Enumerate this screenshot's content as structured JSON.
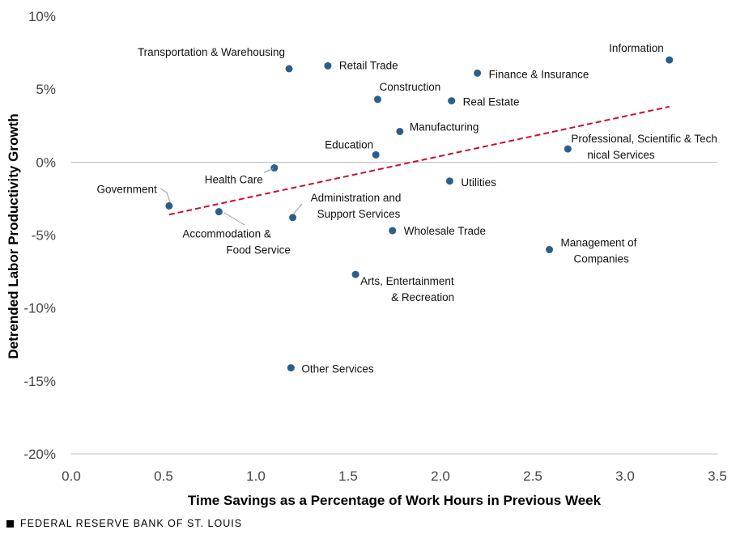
{
  "chart_data": {
    "type": "scatter",
    "xlabel": "Time Savings as a Percentage of Work Hours in Previous Week",
    "ylabel": "Detrended Labor Productivity Growth",
    "xlim": [
      0,
      3.5
    ],
    "ylim": [
      -20,
      10
    ],
    "x_ticks": [
      "0.0",
      "0.5",
      "1.0",
      "1.5",
      "2.0",
      "2.5",
      "3.0",
      "3.5"
    ],
    "y_ticks": [
      "10%",
      "5%",
      "0%",
      "-5%",
      "-10%",
      "-15%",
      "-20%"
    ],
    "grid": false,
    "point_color": "#2b5f8a",
    "trend_color": "#c8102e",
    "points": [
      {
        "name": "Transportation & Warehousing",
        "x": 1.18,
        "y": 6.4
      },
      {
        "name": "Retail Trade",
        "x": 1.39,
        "y": 6.6
      },
      {
        "name": "Information",
        "x": 3.24,
        "y": 7.0
      },
      {
        "name": "Finance & Insurance",
        "x": 2.2,
        "y": 6.1
      },
      {
        "name": "Construction",
        "x": 1.66,
        "y": 4.3
      },
      {
        "name": "Real Estate",
        "x": 2.06,
        "y": 4.2
      },
      {
        "name": "Manufacturing",
        "x": 1.78,
        "y": 2.1
      },
      {
        "name": "Education",
        "x": 1.65,
        "y": 0.5
      },
      {
        "name": "Professional, Scientific & Technical Services",
        "x": 2.69,
        "y": 0.9
      },
      {
        "name": "Health Care",
        "x": 1.1,
        "y": -0.4
      },
      {
        "name": "Utilities",
        "x": 2.05,
        "y": -1.3
      },
      {
        "name": "Government",
        "x": 0.53,
        "y": -3.0
      },
      {
        "name": "Accommodation & Food Service",
        "x": 0.8,
        "y": -3.4
      },
      {
        "name": "Administration and Support Services",
        "x": 1.2,
        "y": -3.8
      },
      {
        "name": "Wholesale Trade",
        "x": 1.74,
        "y": -4.7
      },
      {
        "name": "Management of Companies",
        "x": 2.59,
        "y": -6.0
      },
      {
        "name": "Arts, Entertainment & Recreation",
        "x": 1.54,
        "y": -7.7
      },
      {
        "name": "Other Services",
        "x": 1.19,
        "y": -14.1
      }
    ],
    "trendline": {
      "x": [
        0.53,
        3.24
      ],
      "y": [
        -3.6,
        3.8
      ]
    }
  },
  "footer": {
    "source": "FEDERAL RESERVE BANK OF ST. LOUIS"
  }
}
